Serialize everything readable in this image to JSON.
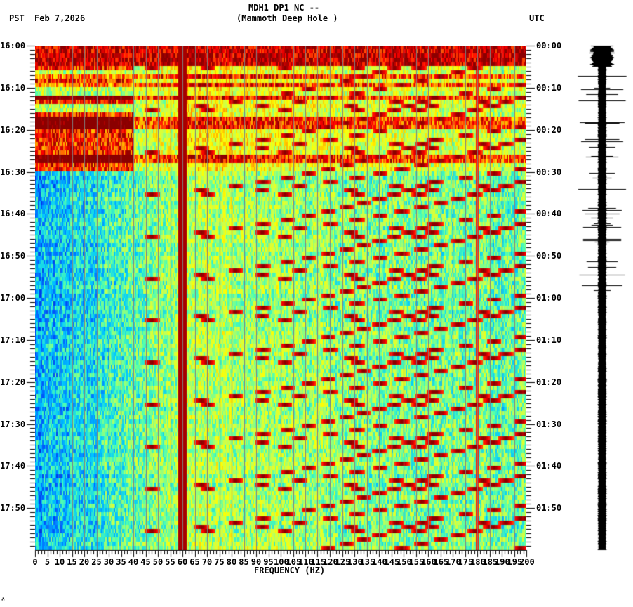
{
  "header": {
    "title_line1": "MDH1 DP1 NC --",
    "title_line2": "(Mammoth Deep Hole )",
    "tz_left": "PST",
    "date": "Feb 7,2026",
    "tz_right": "UTC"
  },
  "colors": {
    "background": "#ffffff",
    "gridline": "#808080",
    "axis": "#000000",
    "colormap": [
      "#0000c8",
      "#0064ff",
      "#00c8ff",
      "#50ffb0",
      "#c8ff50",
      "#ffff00",
      "#ff9600",
      "#ff0000",
      "#8b0000"
    ]
  },
  "footer": {
    "mark": "∴"
  },
  "chart_data": [
    {
      "type": "heatmap",
      "title": "MDH1 DP1 NC -- (Mammoth Deep Hole )",
      "subtitle": "Feb 7,2026",
      "xlabel": "FREQUENCY (HZ)",
      "ylabel_left": "PST",
      "ylabel_right": "UTC",
      "xlim": [
        0,
        200
      ],
      "x_ticks": [
        0,
        5,
        10,
        15,
        20,
        25,
        30,
        35,
        40,
        45,
        50,
        55,
        60,
        65,
        70,
        75,
        80,
        85,
        90,
        95,
        100,
        105,
        110,
        115,
        120,
        125,
        130,
        135,
        140,
        145,
        150,
        155,
        160,
        165,
        170,
        175,
        180,
        185,
        190,
        195,
        200
      ],
      "y_ticks_left": [
        "16:00",
        "16:10",
        "16:20",
        "16:30",
        "16:40",
        "16:50",
        "17:00",
        "17:10",
        "17:20",
        "17:30",
        "17:40",
        "17:50"
      ],
      "y_ticks_right": [
        "00:00",
        "00:10",
        "00:20",
        "00:30",
        "00:40",
        "00:50",
        "01:00",
        "01:10",
        "01:20",
        "01:30",
        "01:40",
        "01:50"
      ],
      "minor_tick_interval_min": 1,
      "time_span_min": 120,
      "grid": "vertical gray lines every 5 Hz",
      "features": {
        "persistent_line_hz": 60,
        "secondary_line_hz": 180,
        "high_energy_band_minutes": [
          0,
          5
        ],
        "noisy_period_minutes": [
          0,
          30
        ],
        "chirp_sweeps_repeat_min": 10,
        "low_freq_quiet_region_hz": [
          0,
          30
        ]
      },
      "colorbar": "jet (blue=low power, dark red=high power)"
    },
    {
      "type": "line",
      "title": "seismogram trace",
      "orientation": "vertical",
      "notes": "large amplitude at start (0-5 min), spiky bursts 5-62 min, steady low amplitude afterwards"
    }
  ]
}
